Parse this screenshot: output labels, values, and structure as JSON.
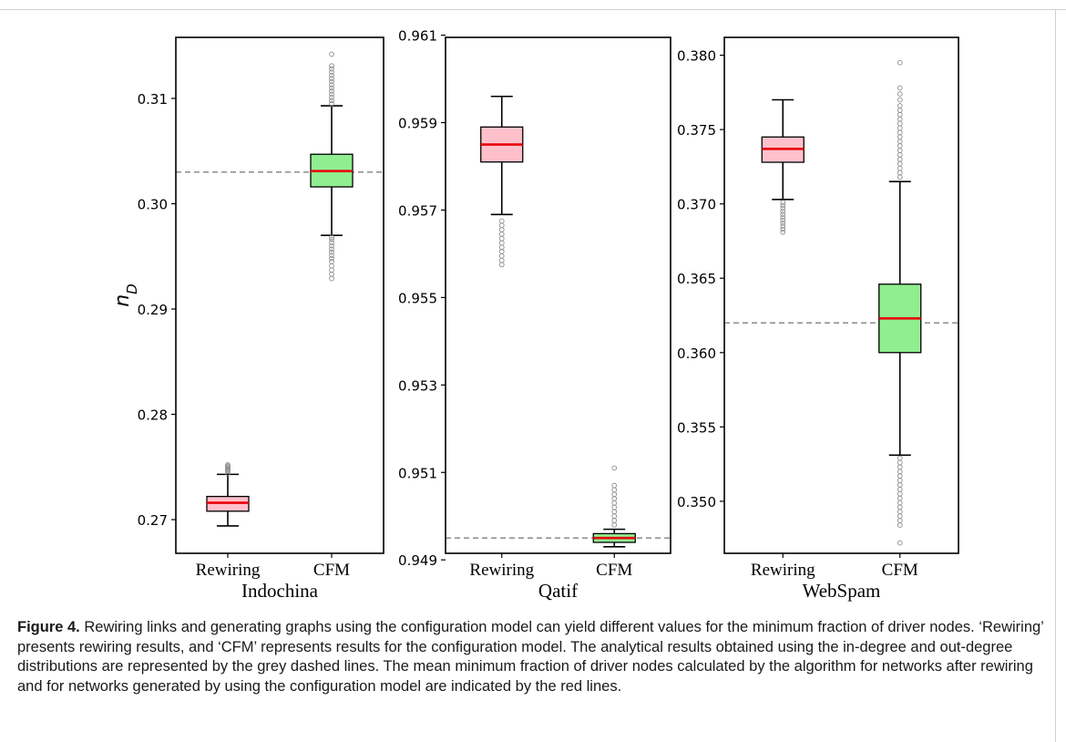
{
  "figure": {
    "caption_label": "Figure 4.",
    "caption_text": " Rewiring links and generating graphs using the configuration model can yield different values for the minimum fraction of driver nodes. ‘Rewiring’ presents rewiring results, and ‘CFM’ represents results for the configuration model. The analytical results obtained using the in-degree and out-degree distributions are represented by the grey dashed lines. The mean minimum fraction of driver nodes calculated by the algorithm for networks after rewiring and for networks generated by using the configuration model are indicated by the red lines."
  },
  "chart_data": [
    {
      "type": "box",
      "title": "Indochina",
      "ylabel": "n_D",
      "ylim": [
        0.2668,
        0.3158
      ],
      "yticks": [
        "0.27",
        "0.28",
        "0.29",
        "0.30",
        "0.31"
      ],
      "categories": [
        "Rewiring",
        "CFM"
      ],
      "analytical_line": 0.303,
      "boxes": [
        {
          "category": "Rewiring",
          "whisker_low": 0.2694,
          "q1": 0.2708,
          "median": 0.2716,
          "q3": 0.2722,
          "whisker_high": 0.2743,
          "fliers": [
            0.2744,
            0.2746,
            0.2747,
            0.2748,
            0.2749,
            0.275,
            0.2751,
            0.2752
          ]
        },
        {
          "category": "CFM",
          "whisker_low": 0.297,
          "q1": 0.3016,
          "median": 0.3031,
          "q3": 0.3047,
          "whisker_high": 0.3093,
          "fliers": [
            0.2929,
            0.2933,
            0.2937,
            0.2941,
            0.2945,
            0.2948,
            0.2951,
            0.2954,
            0.2957,
            0.296,
            0.2963,
            0.2966,
            0.2968,
            0.3095,
            0.3098,
            0.3101,
            0.3104,
            0.3107,
            0.311,
            0.3113,
            0.3116,
            0.3119,
            0.3122,
            0.3125,
            0.3128,
            0.3131,
            0.3142
          ]
        }
      ]
    },
    {
      "type": "box",
      "title": "Qatif",
      "ylabel": "",
      "ylim": [
        0.94915,
        0.96095
      ],
      "yticks": [
        "0.949",
        "0.951",
        "0.953",
        "0.955",
        "0.957",
        "0.959",
        "0.961"
      ],
      "categories": [
        "Rewiring",
        "CFM"
      ],
      "analytical_line": 0.9495,
      "boxes": [
        {
          "category": "Rewiring",
          "whisker_low": 0.9569,
          "q1": 0.9581,
          "median": 0.9585,
          "q3": 0.9589,
          "whisker_high": 0.9596,
          "fliers": [
            0.95675,
            0.95665,
            0.95655,
            0.95645,
            0.95635,
            0.95625,
            0.95615,
            0.95605,
            0.95595,
            0.95585,
            0.95575
          ]
        },
        {
          "category": "CFM",
          "whisker_low": 0.9493,
          "q1": 0.9494,
          "median": 0.9495,
          "q3": 0.9496,
          "whisker_high": 0.9497,
          "fliers": [
            0.9498,
            0.9499,
            0.95,
            0.9501,
            0.9502,
            0.9503,
            0.9504,
            0.9505,
            0.9506,
            0.9507,
            0.9511
          ]
        }
      ]
    },
    {
      "type": "box",
      "title": "WebSpam",
      "ylabel": "",
      "ylim": [
        0.3465,
        0.3812
      ],
      "yticks": [
        "0.350",
        "0.355",
        "0.360",
        "0.365",
        "0.370",
        "0.375",
        "0.380"
      ],
      "categories": [
        "Rewiring",
        "CFM"
      ],
      "analytical_line": 0.362,
      "boxes": [
        {
          "category": "Rewiring",
          "whisker_low": 0.3703,
          "q1": 0.3728,
          "median": 0.3737,
          "q3": 0.3745,
          "whisker_high": 0.377,
          "fliers": [
            0.3701,
            0.3699,
            0.3697,
            0.3695,
            0.3693,
            0.3691,
            0.3689,
            0.3687,
            0.3685,
            0.3683,
            0.3681
          ]
        },
        {
          "category": "CFM",
          "whisker_low": 0.3531,
          "q1": 0.36,
          "median": 0.3623,
          "q3": 0.3646,
          "whisker_high": 0.3715,
          "fliers": [
            0.3529,
            0.3526,
            0.3523,
            0.352,
            0.3517,
            0.3514,
            0.3511,
            0.3508,
            0.3505,
            0.3502,
            0.3499,
            0.3496,
            0.3493,
            0.349,
            0.3487,
            0.3484,
            0.3472,
            0.3718,
            0.3721,
            0.3724,
            0.3727,
            0.373,
            0.3733,
            0.3736,
            0.3739,
            0.3742,
            0.3745,
            0.3748,
            0.3751,
            0.3754,
            0.3757,
            0.376,
            0.3763,
            0.3766,
            0.377,
            0.3774,
            0.3778,
            0.3795
          ]
        }
      ]
    }
  ],
  "colors": {
    "rewiring_box": "#ffc0cb",
    "cfm_box": "#90ee90",
    "median": "#e8000b",
    "analytical": "#808080",
    "flier": "#8c8c8c"
  }
}
